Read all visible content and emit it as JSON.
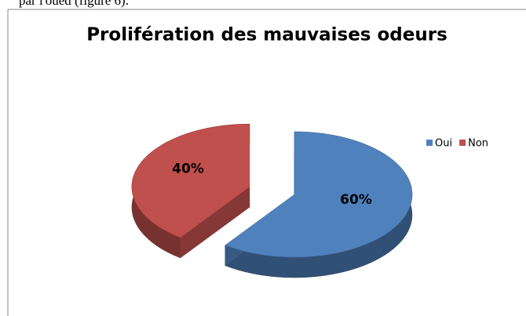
{
  "document": {
    "text": "par l'oued (figure 6)."
  },
  "chart_data": {
    "type": "pie",
    "title": "Prolifération des mauvaises odeurs",
    "categories": [
      "Oui",
      "Non"
    ],
    "values": [
      60,
      40
    ],
    "value_labels": [
      "60%",
      "40%"
    ],
    "colors": [
      "#4f81bd",
      "#c0504d"
    ],
    "legend": "right",
    "exploded": [
      false,
      true
    ],
    "three_d": true
  }
}
